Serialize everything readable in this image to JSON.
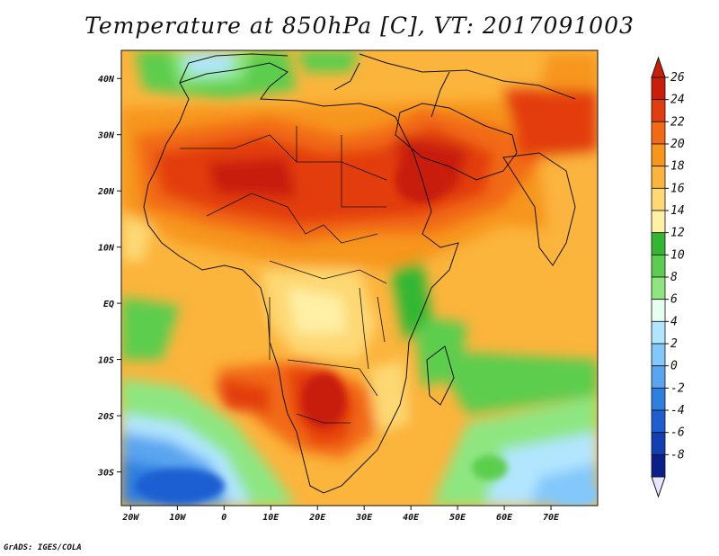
{
  "title": "Temperature at 850hPa [C], VT: 2017091003",
  "footer": "GrADS: IGES/COLA",
  "map": {
    "lon_range": [
      -22,
      80
    ],
    "lat_range": [
      -36,
      45
    ],
    "lat_ticks": [
      "40N",
      "30N",
      "20N",
      "10N",
      "EQ",
      "10S",
      "20S",
      "30S"
    ],
    "lon_ticks": [
      "20W",
      "10W",
      "0",
      "10E",
      "20E",
      "30E",
      "40E",
      "50E",
      "60E",
      "70E"
    ]
  },
  "colorbar": {
    "labels": [
      "26",
      "24",
      "22",
      "20",
      "18",
      "16",
      "14",
      "12",
      "10",
      "8",
      "6",
      "4",
      "2",
      "0",
      "-2",
      "-4",
      "-6",
      "-8"
    ],
    "colors": [
      "#c81e0a",
      "#e33c0f",
      "#f26a14",
      "#f7951c",
      "#fbb43c",
      "#fdd873",
      "#fff0a6",
      "#33b733",
      "#5ccd4e",
      "#8ee681",
      "#e6fff0",
      "#b2e6ff",
      "#82c8fa",
      "#5aa5f0",
      "#2d7fe0",
      "#1e5ed2",
      "#1040b4",
      "#0a1f8c"
    ],
    "top_arrow_color": "#c81e0a",
    "bottom_arrow_color": "#e6e6ff"
  }
}
